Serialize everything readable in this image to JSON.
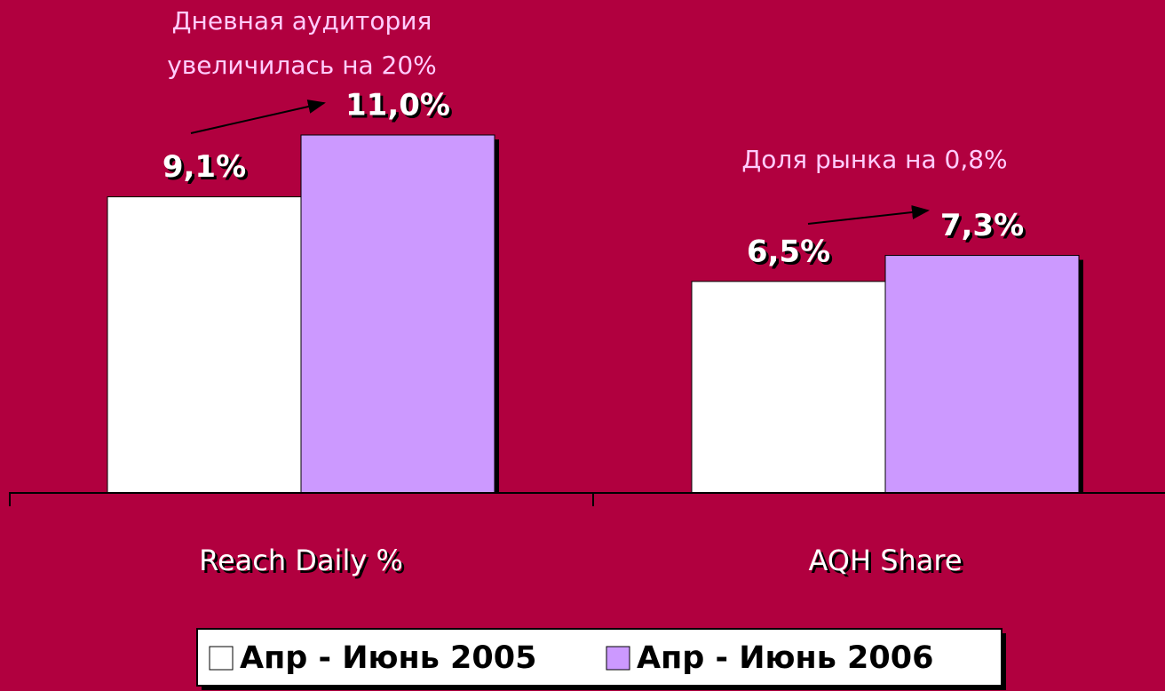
{
  "chart_data": {
    "type": "bar",
    "categories": [
      "Reach Daily %",
      "AQH Share"
    ],
    "series": [
      {
        "name": "Апр - Июнь 2005",
        "color": "#ffffff",
        "values": [
          9.1,
          6.5
        ],
        "value_labels": [
          "9,1%",
          "6,5%"
        ]
      },
      {
        "name": "Апр - Июнь 2006",
        "color": "#cc99ff",
        "values": [
          11.0,
          7.3
        ],
        "value_labels": [
          "11,0%",
          "7,3%"
        ]
      }
    ],
    "annotations": [
      "Дневная аудитория",
      "увеличилась на 20%",
      "Доля рынка на 0,8%"
    ],
    "legend": "bottom"
  }
}
